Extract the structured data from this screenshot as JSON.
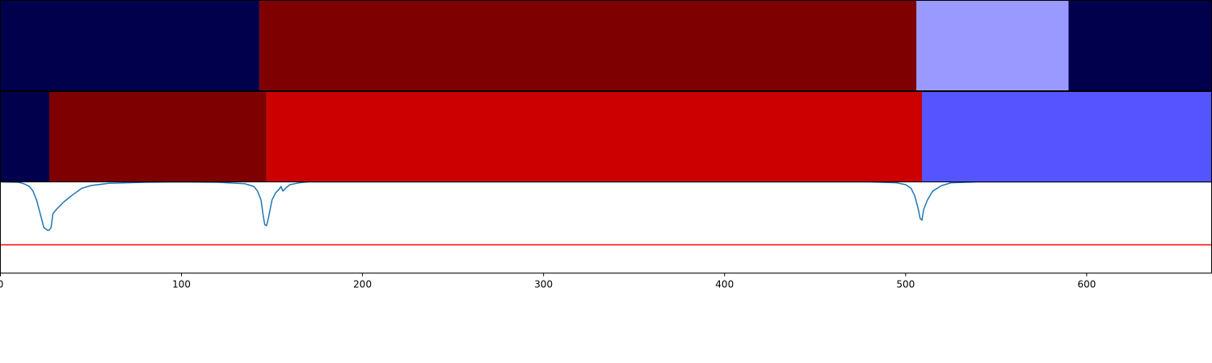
{
  "chart_data": [
    {
      "type": "heatmap",
      "xlim": [
        0,
        669
      ],
      "segments": [
        {
          "start": 0,
          "end": 143,
          "color": "#00004c"
        },
        {
          "start": 143,
          "end": 506,
          "color": "#7f0000"
        },
        {
          "start": 506,
          "end": 590,
          "color": "#9999ff"
        },
        {
          "start": 590,
          "end": 669,
          "color": "#00004c"
        }
      ]
    },
    {
      "type": "heatmap",
      "xlim": [
        0,
        669
      ],
      "segments": [
        {
          "start": 0,
          "end": 27,
          "color": "#00004c"
        },
        {
          "start": 27,
          "end": 147,
          "color": "#7f0000"
        },
        {
          "start": 147,
          "end": 509,
          "color": "#cc0000"
        },
        {
          "start": 509,
          "end": 669,
          "color": "#5555ff"
        }
      ]
    },
    {
      "type": "line",
      "xlim": [
        0,
        669
      ],
      "ylim": [
        0,
        1
      ],
      "xticks": [
        0,
        100,
        200,
        300,
        400,
        500,
        600
      ],
      "xtick_labels": [
        "0",
        "100",
        "200",
        "300",
        "400",
        "500",
        "600"
      ],
      "series": [
        {
          "color": "#1f77b4",
          "x": [
            0,
            10,
            13,
            16,
            18,
            20,
            22,
            24,
            26,
            27,
            28,
            29,
            31,
            35,
            40,
            45,
            50,
            60,
            80,
            100,
            120,
            135,
            140,
            142,
            144,
            145,
            146,
            147,
            148,
            149,
            150,
            152,
            154,
            155,
            156,
            158,
            160,
            165,
            170,
            190,
            300,
            480,
            495,
            500,
            503,
            505,
            507,
            508,
            509,
            510,
            512,
            515,
            520,
            525,
            540,
            669
          ],
          "y": [
            1.0,
            0.995,
            0.98,
            0.95,
            0.9,
            0.8,
            0.65,
            0.5,
            0.47,
            0.47,
            0.5,
            0.65,
            0.7,
            0.78,
            0.86,
            0.93,
            0.96,
            0.985,
            0.995,
            1.0,
            0.995,
            0.98,
            0.95,
            0.9,
            0.8,
            0.65,
            0.53,
            0.52,
            0.6,
            0.7,
            0.8,
            0.88,
            0.92,
            0.95,
            0.9,
            0.94,
            0.97,
            0.99,
            1.0,
            1.0,
            1.0,
            1.0,
            0.99,
            0.97,
            0.93,
            0.85,
            0.7,
            0.6,
            0.58,
            0.7,
            0.8,
            0.9,
            0.96,
            0.99,
            1.0,
            1.0
          ]
        },
        {
          "color": "#ff0000",
          "x": [
            0,
            669
          ],
          "y": [
            0.31,
            0.31
          ]
        }
      ]
    }
  ]
}
